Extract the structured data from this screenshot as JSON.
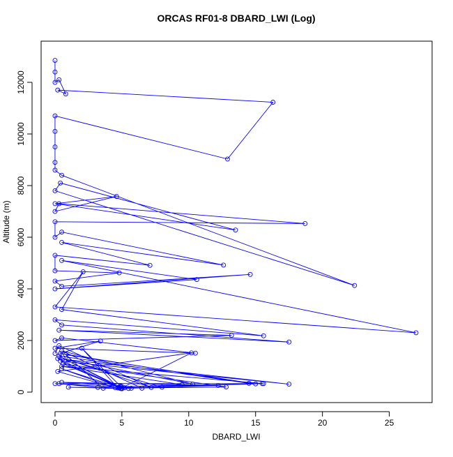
{
  "chart_data": {
    "type": "line",
    "title": "ORCAS RF01-8 DBARD_LWI (Log)",
    "x_label": "DBARD_LWI",
    "y_label": "Altitude (m)",
    "xlim": [
      -1.04,
      28.2
    ],
    "ylim": [
      -405,
      13595
    ],
    "xticks": [
      0,
      5,
      10,
      15,
      20,
      25
    ],
    "yticks": [
      0,
      2000,
      4000,
      6000,
      8000,
      10000,
      12000
    ],
    "grid": false,
    "markers": true,
    "series": [
      {
        "color": "#0000ff",
        "x": [
          0,
          0,
          0,
          0.3,
          0.8,
          0.2,
          16.3,
          12.9,
          0,
          0,
          0,
          0,
          0,
          0.5,
          22.4,
          0,
          0.4,
          13.5,
          0,
          4.6,
          0,
          0.3,
          18.7,
          0,
          0,
          0.5,
          12.6,
          0.5,
          7.1,
          0,
          0,
          4.8,
          0,
          0.5,
          14.6,
          0,
          10.6,
          0.5,
          27,
          0,
          2.1,
          0.5,
          15.6,
          0,
          0.5,
          17.5,
          0.3,
          13.2,
          0,
          0.5,
          10.5,
          0,
          3.4,
          0.4,
          14.5,
          0.3,
          5,
          0.2,
          17.5,
          0.4,
          4.8,
          15.6,
          0.5,
          9.5,
          4.8,
          0.6,
          12.8,
          5,
          0.5,
          4.5,
          0.2,
          10.2,
          4.9,
          1,
          5.5,
          3.6,
          0.8,
          15,
          4.7,
          2,
          4.9,
          0.5,
          12.2,
          5.7,
          0.3,
          3.2,
          4.9,
          0.6,
          8,
          5.2,
          0,
          15.5,
          5,
          6.5,
          0.5,
          10.3,
          1,
          7.2,
          0.3,
          0
        ],
        "values": [
          12850,
          12400,
          12000,
          12100,
          11550,
          11700,
          11230,
          9030,
          10700,
          10100,
          9500,
          8900,
          8600,
          8400,
          4130,
          7800,
          8100,
          6280,
          7300,
          7580,
          7000,
          7300,
          6530,
          6600,
          6000,
          6200,
          4920,
          5800,
          4910,
          5300,
          4700,
          4620,
          4300,
          4100,
          4560,
          4000,
          4360,
          5100,
          2300,
          3300,
          4660,
          3200,
          2180,
          2800,
          2600,
          1940,
          2400,
          2200,
          2000,
          2100,
          1510,
          1700,
          1980,
          1500,
          340,
          1400,
          130,
          1300,
          310,
          1200,
          160,
          330,
          1000,
          290,
          190,
          1100,
          200,
          150,
          900,
          170,
          800,
          1520,
          140,
          190,
          140,
          150,
          1450,
          320,
          160,
          1700,
          230,
          380,
          260,
          150,
          330,
          180,
          200,
          1300,
          190,
          170,
          330,
          330,
          210,
          150,
          1600,
          310,
          1250,
          180,
          1800,
          1500
        ]
      }
    ]
  }
}
